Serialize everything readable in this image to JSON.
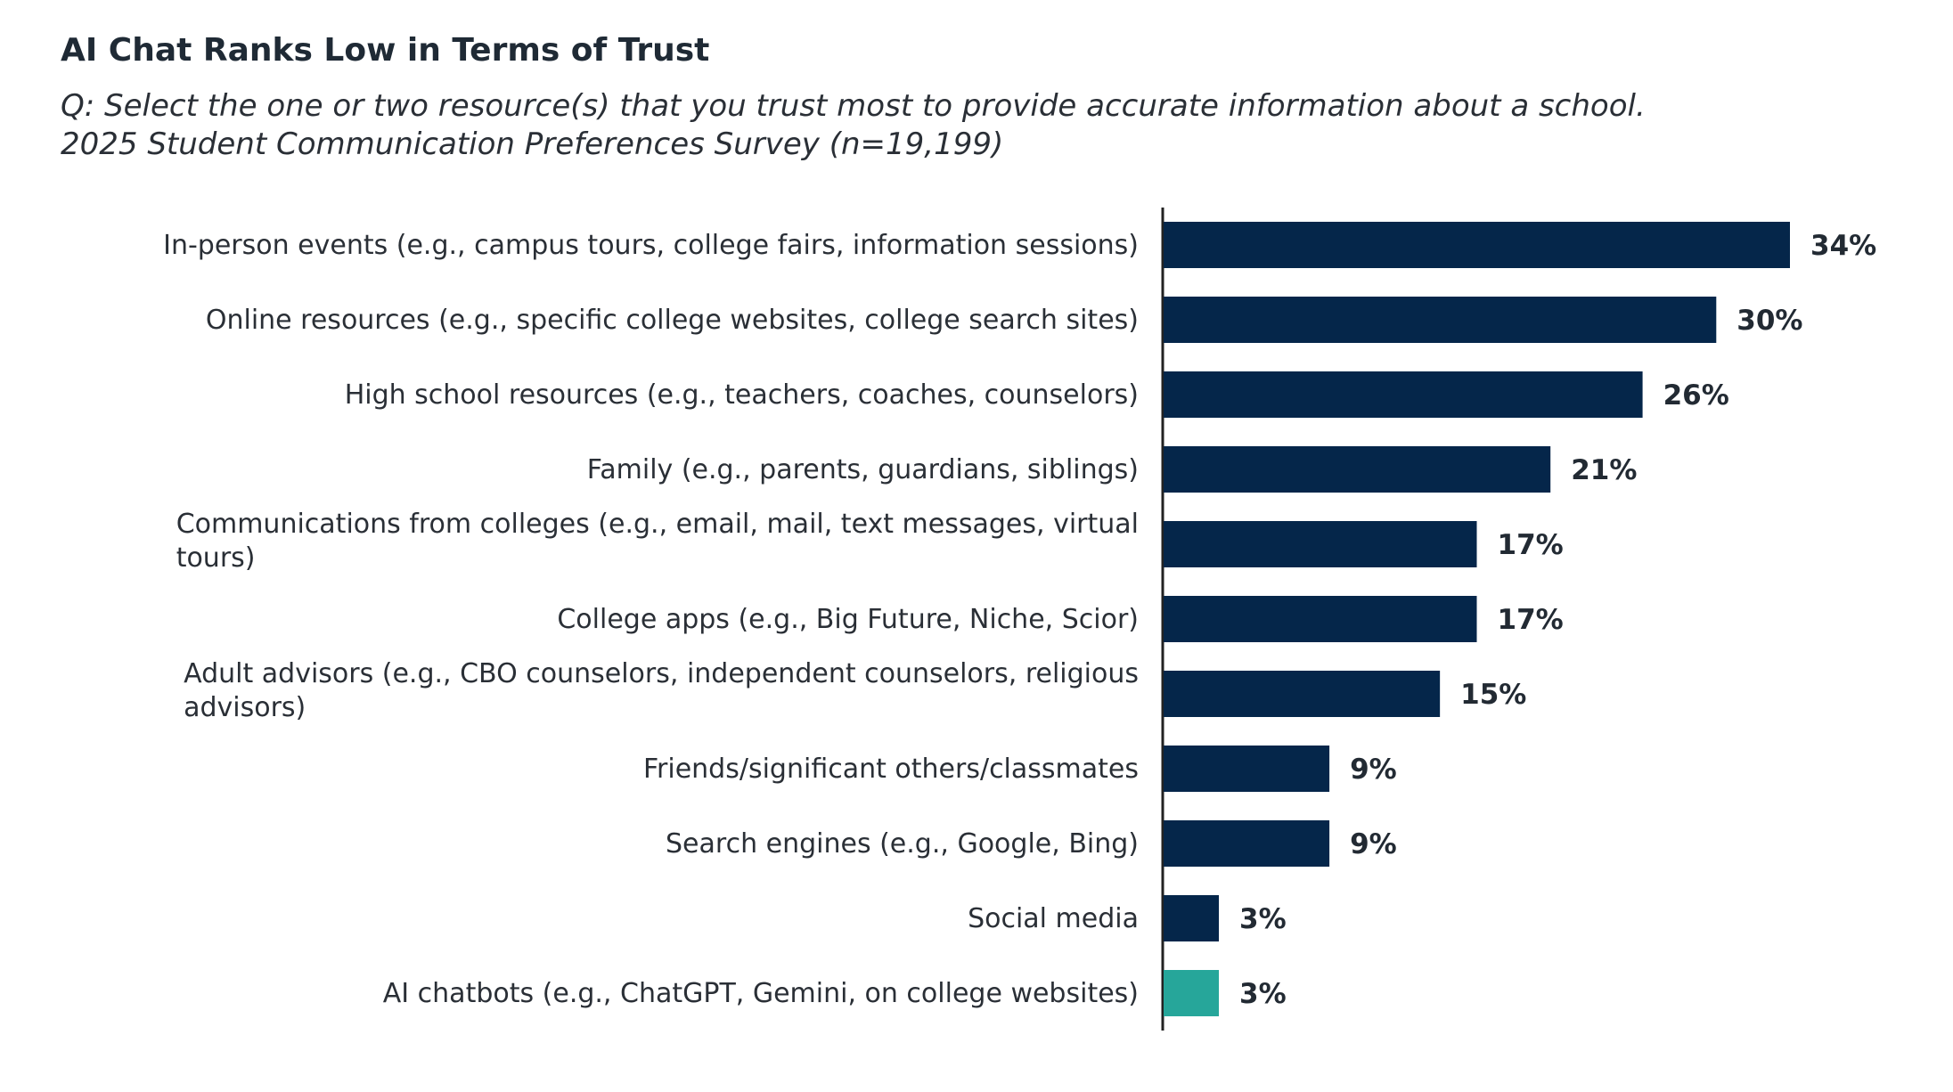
{
  "title": "AI Chat Ranks Low in Terms of Trust",
  "subtitle_lines": [
    "Q: Select the one or two resource(s) that you trust most to provide accurate information about a school.",
    "2025 Student Communication Preferences Survey (n=19,199)"
  ],
  "colors": {
    "bar_default": "#05264a",
    "bar_highlight": "#26a69a",
    "axis": "#222222",
    "text": "#2a2f36"
  },
  "chart_data": {
    "type": "bar",
    "orientation": "horizontal",
    "value_format": "percent",
    "xlim": [
      0,
      34
    ],
    "categories": [
      [
        "In-person events (e.g., campus tours, college fairs, information sessions)"
      ],
      [
        "Online resources (e.g., specific college websites, college search sites)"
      ],
      [
        "High school resources (e.g., teachers, coaches, counselors)"
      ],
      [
        "Family (e.g., parents, guardians, siblings)"
      ],
      [
        "Communications from colleges (e.g., email, mail, text messages, virtual",
        "tours)"
      ],
      [
        "College apps (e.g., Big Future, Niche, Scior)"
      ],
      [
        "Adult advisors (e.g., CBO counselors, independent counselors, religious",
        "advisors)"
      ],
      [
        "Friends/significant others/classmates"
      ],
      [
        "Search engines (e.g., Google, Bing)"
      ],
      [
        "Social media"
      ],
      [
        "AI chatbots (e.g., ChatGPT, Gemini, on college websites)"
      ]
    ],
    "values": [
      34,
      30,
      26,
      21,
      17,
      17,
      15,
      9,
      9,
      3,
      3
    ],
    "data_labels": [
      "34%",
      "30%",
      "26%",
      "21%",
      "17%",
      "17%",
      "15%",
      "9%",
      "9%",
      "3%",
      "3%"
    ],
    "highlight_index": 10,
    "grid": false,
    "legend": "none"
  }
}
